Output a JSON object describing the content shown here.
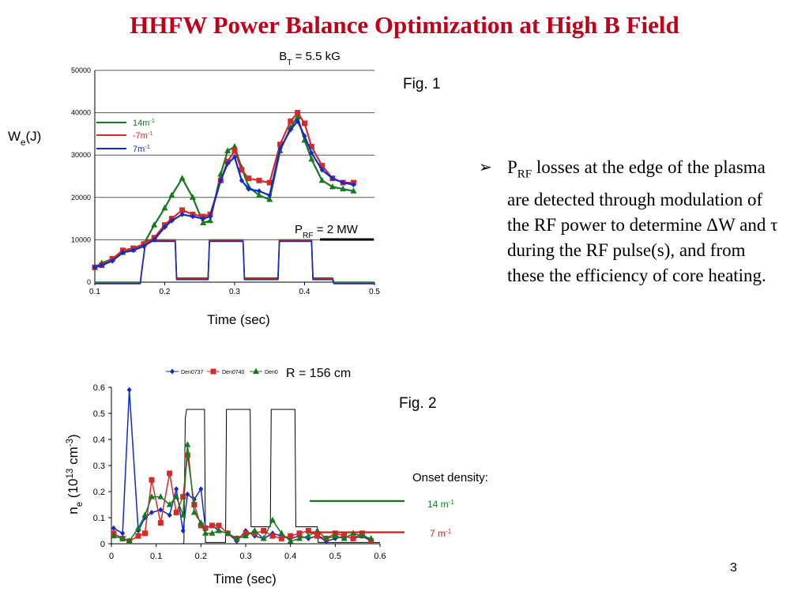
{
  "slide": {
    "title": "HHFW Power Balance Optimization at High B Field",
    "page_number": "3",
    "bullet_mark": "➢",
    "bullet_prefix": "P",
    "bullet_sub": "RF",
    "bullet_text": " losses at the edge of the plasma are detected through modulation of the RF power to determine ΔW and τ during the RF pulse(s), and from these the efficiency of core heating."
  },
  "chart_data": [
    {
      "type": "line",
      "fig_label": "Fig. 1",
      "top_label": {
        "main": "B",
        "sub": "T",
        "rest": " = 5.5 kG"
      },
      "ylabel": {
        "main": "W",
        "sub": "e",
        "rest": "(J)"
      },
      "xlabel": "Time (sec)",
      "xlim": [
        0.1,
        0.5
      ],
      "ylim": [
        0,
        50000
      ],
      "xticks": [
        0.1,
        0.2,
        0.3,
        0.4,
        0.5
      ],
      "yticks": [
        0,
        10000,
        20000,
        30000,
        40000,
        50000
      ],
      "grid": "horizontal",
      "prf_label": {
        "main": "P",
        "sub": "RF",
        "rest": " = 2 MW"
      },
      "series": [
        {
          "name": "14m",
          "sup": "-1",
          "color": "#137a1f",
          "marker": "triangle",
          "x": [
            0.1,
            0.11,
            0.125,
            0.14,
            0.155,
            0.17,
            0.185,
            0.2,
            0.21,
            0.225,
            0.24,
            0.255,
            0.265,
            0.28,
            0.29,
            0.3,
            0.31,
            0.32,
            0.335,
            0.35,
            0.365,
            0.38,
            0.39,
            0.4,
            0.41,
            0.425,
            0.44,
            0.455,
            0.47
          ],
          "y": [
            3500,
            4500,
            5500,
            7000,
            7700,
            9000,
            13500,
            17500,
            20500,
            24500,
            20000,
            14000,
            14500,
            25500,
            31000,
            32000,
            27000,
            22500,
            20500,
            19500,
            31000,
            36500,
            39000,
            33500,
            29000,
            24000,
            22500,
            22000,
            21500
          ]
        },
        {
          "name": "-7m",
          "sup": "-1",
          "color": "#d42a2a",
          "marker": "square",
          "x": [
            0.1,
            0.11,
            0.125,
            0.14,
            0.155,
            0.17,
            0.185,
            0.2,
            0.21,
            0.225,
            0.24,
            0.255,
            0.265,
            0.28,
            0.29,
            0.3,
            0.31,
            0.32,
            0.335,
            0.35,
            0.365,
            0.38,
            0.39,
            0.4,
            0.41,
            0.425,
            0.44,
            0.455,
            0.47
          ],
          "y": [
            3500,
            4000,
            5500,
            7500,
            8000,
            9000,
            10500,
            13500,
            15000,
            17000,
            16000,
            15500,
            16000,
            24000,
            28500,
            31000,
            26500,
            24500,
            24000,
            23500,
            32500,
            38000,
            40000,
            37500,
            32000,
            27500,
            24500,
            23500,
            23500
          ]
        },
        {
          "name": "7m",
          "sup": "-1",
          "color": "#1329c8",
          "marker": "diamond",
          "x": [
            0.1,
            0.11,
            0.125,
            0.14,
            0.155,
            0.17,
            0.185,
            0.2,
            0.21,
            0.225,
            0.24,
            0.255,
            0.265,
            0.28,
            0.29,
            0.3,
            0.31,
            0.32,
            0.335,
            0.35,
            0.365,
            0.38,
            0.39,
            0.4,
            0.41,
            0.425,
            0.44,
            0.455,
            0.47
          ],
          "y": [
            3500,
            4000,
            5000,
            7000,
            7500,
            8500,
            10000,
            13000,
            14500,
            16000,
            15500,
            15000,
            15500,
            24000,
            28000,
            29500,
            24000,
            22000,
            21500,
            20500,
            31500,
            36000,
            38000,
            34500,
            30500,
            26500,
            24500,
            23500,
            23000
          ]
        }
      ],
      "rf_traces": {
        "colors": [
          "#137a1f",
          "#d42a2a",
          "#1329c8"
        ],
        "x": [
          0.1,
          0.165,
          0.168,
          0.172,
          0.175,
          0.215,
          0.217,
          0.262,
          0.264,
          0.312,
          0.314,
          0.362,
          0.364,
          0.41,
          0.412,
          0.44,
          0.442,
          0.46,
          0.462,
          0.5
        ],
        "y": [
          0,
          0,
          4000,
          9000,
          10000,
          10000,
          1000,
          1000,
          10000,
          10000,
          1000,
          1000,
          10000,
          10000,
          1000,
          1000,
          0,
          0,
          0,
          0
        ]
      }
    },
    {
      "type": "line",
      "fig_label": "Fig. 2",
      "top_label": "R = 156 cm",
      "ylabel": {
        "pre": "n",
        "sub": "e",
        "mid": " (10",
        "sup1": "13",
        "post": " cm",
        "sup2": "-3",
        "end": ")"
      },
      "xlabel": "Time (sec)",
      "xlim": [
        0,
        0.6
      ],
      "ylim": [
        0,
        0.6
      ],
      "xticks": [
        0,
        0.1,
        0.2,
        0.3,
        0.4,
        0.5,
        0.6
      ],
      "yticks": [
        0,
        0.1,
        0.2,
        0.3,
        0.4,
        0.5,
        0.6
      ],
      "grid": "none",
      "legend": [
        "Den0737",
        "Den0740",
        "Den0"
      ],
      "onset_label": "Onset density:",
      "onset": [
        {
          "label": "14 m",
          "sup": "-1",
          "value": 0.17,
          "color": "#137a1f"
        },
        {
          "label": "7 m",
          "sup": "-1",
          "value": 0.05,
          "color": "#c81e1e"
        }
      ],
      "series": [
        {
          "name": "Den0737",
          "color": "#1329c8",
          "marker": "diamond",
          "x": [
            0.005,
            0.025,
            0.04,
            0.06,
            0.075,
            0.09,
            0.11,
            0.13,
            0.145,
            0.16,
            0.17,
            0.185,
            0.2,
            0.21,
            0.225,
            0.24,
            0.26,
            0.28,
            0.3,
            0.32,
            0.34,
            0.36,
            0.38,
            0.4,
            0.42,
            0.44,
            0.46,
            0.48,
            0.5,
            0.52,
            0.54,
            0.56,
            0.58
          ],
          "y": [
            0.06,
            0.04,
            0.59,
            0.05,
            0.1,
            0.12,
            0.13,
            0.11,
            0.21,
            0.05,
            0.19,
            0.17,
            0.21,
            0.06,
            0.07,
            0.05,
            0.04,
            0.01,
            0.05,
            0.03,
            0.02,
            0.04,
            0.03,
            0.02,
            0.03,
            0.02,
            0.03,
            0.01,
            0.02,
            0.03,
            0.02,
            0.03,
            0.01
          ]
        },
        {
          "name": "Den0740",
          "color": "#d42a2a",
          "marker": "square",
          "x": [
            0.005,
            0.025,
            0.04,
            0.06,
            0.075,
            0.09,
            0.11,
            0.13,
            0.145,
            0.16,
            0.17,
            0.185,
            0.2,
            0.21,
            0.225,
            0.24,
            0.26,
            0.28,
            0.3,
            0.32,
            0.34,
            0.36,
            0.38,
            0.4,
            0.42,
            0.44,
            0.46,
            0.48,
            0.5,
            0.52,
            0.54,
            0.56,
            0.58
          ],
          "y": [
            0.04,
            0.02,
            0.01,
            0.03,
            0.04,
            0.245,
            0.08,
            0.27,
            0.12,
            0.18,
            0.34,
            0.15,
            0.07,
            0.06,
            0.07,
            0.07,
            0.04,
            0.02,
            0.04,
            0.04,
            0.05,
            0.03,
            0.02,
            0.03,
            0.04,
            0.05,
            0.03,
            0.02,
            0.04,
            0.03,
            0.02,
            0.04,
            0.01
          ]
        },
        {
          "name": "Den0",
          "color": "#137a1f",
          "marker": "triangle",
          "x": [
            0.005,
            0.025,
            0.04,
            0.06,
            0.075,
            0.09,
            0.11,
            0.13,
            0.145,
            0.16,
            0.17,
            0.185,
            0.2,
            0.21,
            0.225,
            0.24,
            0.26,
            0.28,
            0.3,
            0.32,
            0.34,
            0.36,
            0.38,
            0.4,
            0.42,
            0.44,
            0.46,
            0.48,
            0.5,
            0.52,
            0.54,
            0.56,
            0.58
          ],
          "y": [
            0.03,
            0.02,
            0.01,
            0.06,
            0.11,
            0.18,
            0.18,
            0.15,
            0.18,
            0.11,
            0.38,
            0.12,
            0.08,
            0.04,
            0.04,
            0.05,
            0.04,
            0.02,
            0.03,
            0.05,
            0.02,
            0.09,
            0.04,
            0.01,
            0.02,
            0.03,
            0.05,
            0.02,
            0.03,
            0.02,
            0.04,
            0.03,
            0.02
          ]
        }
      ],
      "rf_trace": {
        "color": "#000000",
        "x": [
          0,
          0.1,
          0.101,
          0.16,
          0.162,
          0.165,
          0.168,
          0.208,
          0.21,
          0.255,
          0.257,
          0.31,
          0.312,
          0.355,
          0.357,
          0.41,
          0.412,
          0.46,
          0.462,
          0.6
        ],
        "y": [
          0,
          0,
          0,
          0,
          0.005,
          0.48,
          0.515,
          0.515,
          0.005,
          0.005,
          0.515,
          0.515,
          0.065,
          0.065,
          0.515,
          0.515,
          0.065,
          0.065,
          0.005,
          0.005
        ]
      }
    }
  ]
}
